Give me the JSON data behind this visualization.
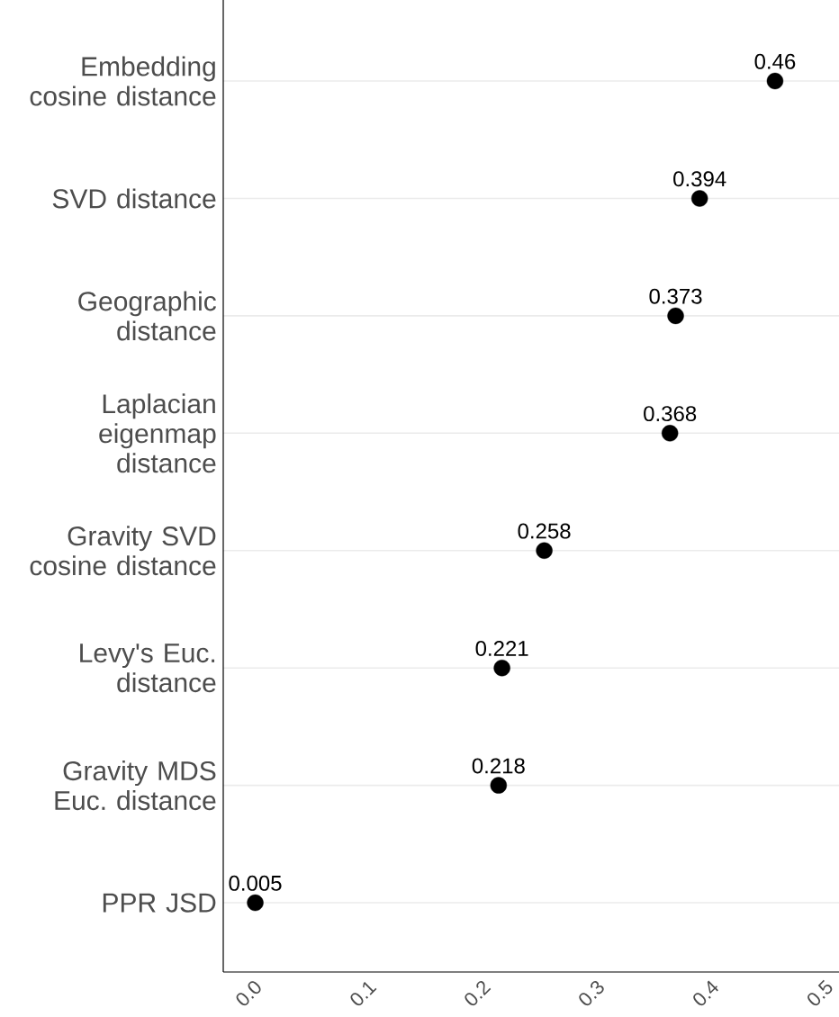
{
  "chart_data": {
    "type": "scatter",
    "orientation": "horizontal",
    "categories": [
      "Embedding cosine distance",
      "SVD distance",
      "Geographic distance",
      "Laplacian eigenmap distance",
      "Gravity SVD cosine distance",
      "Levy's Euc. distance",
      "Gravity MDS Euc. distance",
      "PPR JSD"
    ],
    "values": [
      0.46,
      0.394,
      0.373,
      0.368,
      0.258,
      0.221,
      0.218,
      0.005
    ],
    "color": "#000000",
    "marker": "circle",
    "grid": "y",
    "data_labels": true,
    "xlim": [
      -0.023,
      0.516
    ],
    "xticks": [
      {
        "value": 0,
        "label": "0.0"
      },
      0.1,
      0.2,
      0.3,
      0.4,
      0.5
    ]
  }
}
